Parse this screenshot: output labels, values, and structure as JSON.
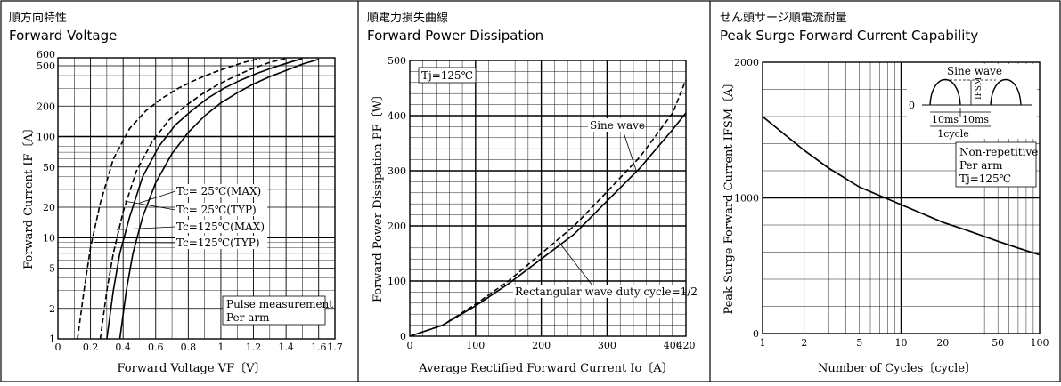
{
  "chart_data": [
    {
      "type": "line",
      "title_ja": "順方向特性",
      "title": "Forward Voltage",
      "xlabel": "Forward Voltage VF〔V〕",
      "ylabel": "Forward Current IF〔A〕",
      "xscale": "linear",
      "yscale": "log",
      "xlim": [
        0,
        1.7
      ],
      "ylim": [
        1,
        600
      ],
      "x_ticks": [
        "0",
        "0.2",
        "0.4",
        "0.6",
        "0.8",
        "1",
        "1.2",
        "1.4",
        "1.6",
        "1.7"
      ],
      "y_ticks": [
        "1",
        "2",
        "5",
        "10",
        "20",
        "50",
        "100",
        "200",
        "500",
        "600"
      ],
      "legend_box": [
        "Pulse measurement",
        "Per arm"
      ],
      "series": [
        {
          "name": "Tc= 25℃(MAX)",
          "style": "solid",
          "points": [
            [
              0.38,
              1
            ],
            [
              0.42,
              3
            ],
            [
              0.46,
              7
            ],
            [
              0.52,
              16
            ],
            [
              0.6,
              35
            ],
            [
              0.7,
              68
            ],
            [
              0.8,
              110
            ],
            [
              0.9,
              160
            ],
            [
              1.0,
              215
            ],
            [
              1.1,
              270
            ],
            [
              1.2,
              330
            ],
            [
              1.3,
              390
            ],
            [
              1.4,
              450
            ],
            [
              1.5,
              520
            ],
            [
              1.6,
              580
            ]
          ]
        },
        {
          "name": "Tc= 25℃(TYP)",
          "style": "solid",
          "points": [
            [
              0.3,
              1
            ],
            [
              0.34,
              3
            ],
            [
              0.38,
              7
            ],
            [
              0.44,
              16
            ],
            [
              0.52,
              40
            ],
            [
              0.62,
              80
            ],
            [
              0.72,
              130
            ],
            [
              0.82,
              180
            ],
            [
              0.92,
              240
            ],
            [
              1.02,
              300
            ],
            [
              1.12,
              360
            ],
            [
              1.22,
              420
            ],
            [
              1.32,
              480
            ],
            [
              1.42,
              540
            ],
            [
              1.5,
              590
            ]
          ]
        },
        {
          "name": "Tc=125℃(MAX)",
          "style": "dashed",
          "points": [
            [
              0.26,
              1
            ],
            [
              0.3,
              3
            ],
            [
              0.34,
              7
            ],
            [
              0.4,
              18
            ],
            [
              0.48,
              45
            ],
            [
              0.58,
              90
            ],
            [
              0.68,
              145
            ],
            [
              0.78,
              200
            ],
            [
              0.88,
              260
            ],
            [
              0.98,
              325
            ],
            [
              1.08,
              390
            ],
            [
              1.18,
              460
            ],
            [
              1.3,
              540
            ],
            [
              1.4,
              590
            ]
          ]
        },
        {
          "name": "Tc=125℃(TYP)",
          "style": "dashed",
          "points": [
            [
              0.12,
              1
            ],
            [
              0.16,
              3
            ],
            [
              0.2,
              8
            ],
            [
              0.26,
              22
            ],
            [
              0.34,
              60
            ],
            [
              0.44,
              120
            ],
            [
              0.54,
              180
            ],
            [
              0.64,
              240
            ],
            [
              0.74,
              300
            ],
            [
              0.84,
              360
            ],
            [
              0.94,
              420
            ],
            [
              1.04,
              480
            ],
            [
              1.14,
              540
            ],
            [
              1.24,
              590
            ]
          ]
        }
      ]
    },
    {
      "type": "line",
      "title_ja": "順電力損失曲線",
      "title": "Forward Power Dissipation",
      "xlabel": "Average Rectified Forward Current Io〔A〕",
      "ylabel": "Forward Power Dissipation PF〔W〕",
      "xlim": [
        0,
        420
      ],
      "ylim": [
        0,
        500
      ],
      "x_ticks": [
        "0",
        "100",
        "200",
        "300",
        "400",
        "420"
      ],
      "y_ticks": [
        "0",
        "100",
        "200",
        "300",
        "400",
        "500"
      ],
      "condition": "Tj=125℃",
      "series": [
        {
          "name": "Sine wave",
          "style": "solid",
          "points": [
            [
              0,
              0
            ],
            [
              50,
              20
            ],
            [
              100,
              55
            ],
            [
              150,
              95
            ],
            [
              200,
              140
            ],
            [
              250,
              185
            ],
            [
              300,
              245
            ],
            [
              350,
              305
            ],
            [
              400,
              375
            ],
            [
              420,
              405
            ]
          ]
        },
        {
          "name": "Rectangular wave duty cycle=1/2",
          "style": "dashed",
          "points": [
            [
              0,
              0
            ],
            [
              50,
              20
            ],
            [
              100,
              58
            ],
            [
              150,
              100
            ],
            [
              200,
              150
            ],
            [
              250,
              200
            ],
            [
              300,
              262
            ],
            [
              350,
              325
            ],
            [
              400,
              405
            ],
            [
              420,
              465
            ]
          ]
        }
      ]
    },
    {
      "type": "line",
      "title_ja": "せん頭サージ順電流耐量",
      "title": "Peak Surge Forward Current Capability",
      "xlabel": "Number of Cycles〔cycle〕",
      "ylabel": "Peak Surge Forward Current IFSM〔A〕",
      "xscale": "log",
      "xlim": [
        1,
        100
      ],
      "ylim": [
        0,
        2000
      ],
      "x_ticks": [
        "1",
        "2",
        "5",
        "10",
        "20",
        "50",
        "100"
      ],
      "y_ticks": [
        "0",
        "1000",
        "2000"
      ],
      "conditions": [
        "Non-repetitive",
        "Per arm",
        "Tj=125℃"
      ],
      "inset": {
        "title": "Sine wave",
        "labels": [
          "0",
          "IFSM",
          "10ms",
          "10ms",
          "1cycle"
        ]
      },
      "series": [
        {
          "name": "",
          "style": "solid",
          "points": [
            [
              1,
              1600
            ],
            [
              2,
              1350
            ],
            [
              3,
              1220
            ],
            [
              5,
              1080
            ],
            [
              10,
              950
            ],
            [
              20,
              820
            ],
            [
              30,
              760
            ],
            [
              50,
              680
            ],
            [
              70,
              630
            ],
            [
              100,
              580
            ]
          ]
        }
      ]
    }
  ]
}
